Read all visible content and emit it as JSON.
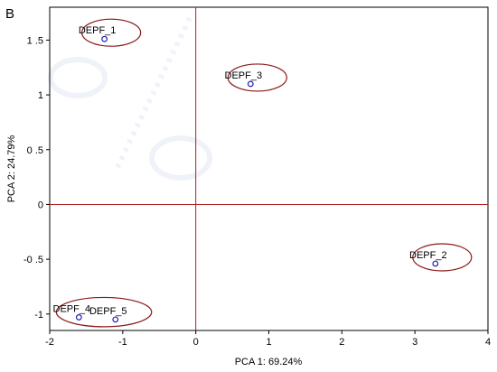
{
  "chart_data": {
    "type": "scatter",
    "panel_label": "B",
    "xlabel": "PCA 1: 69.24%",
    "ylabel": "PCA 2: 24.79%",
    "xlim": [
      -2,
      4
    ],
    "ylim": [
      -1.15,
      1.8
    ],
    "xticks": [
      -2,
      -1,
      0,
      1,
      2,
      3,
      4
    ],
    "xtick_labels": [
      "-2",
      "-1",
      "0",
      "1",
      "2",
      "3",
      "4"
    ],
    "yticks": [
      1.5,
      1,
      0.5,
      0,
      -0.5,
      -1
    ],
    "ytick_labels": [
      "1 .5",
      "1",
      "0 .5",
      "0",
      "-0 .5",
      "-1"
    ],
    "grid": false,
    "reference_lines": [
      {
        "axis": "x",
        "value": 0
      },
      {
        "axis": "y",
        "value": 0
      }
    ],
    "points": [
      {
        "label": "DEPF_1",
        "x": -1.25,
        "y": 1.51
      },
      {
        "label": "DEPF_3",
        "x": 0.75,
        "y": 1.1
      },
      {
        "label": "DEPF_2",
        "x": 3.28,
        "y": -0.54
      },
      {
        "label": "DEPF_4",
        "x": -1.6,
        "y": -1.03
      },
      {
        "label": "DEPF_5",
        "x": -1.1,
        "y": -1.05
      }
    ],
    "groups": [
      [
        "DEPF_1"
      ],
      [
        "DEPF_3"
      ],
      [
        "DEPF_2"
      ],
      [
        "DEPF_4",
        "DEPF_5"
      ]
    ],
    "colors": {
      "point": "#1f1fb4",
      "ellipse": "#8b1a1a",
      "ref_line": "#b22222",
      "axis": "#000000"
    }
  }
}
